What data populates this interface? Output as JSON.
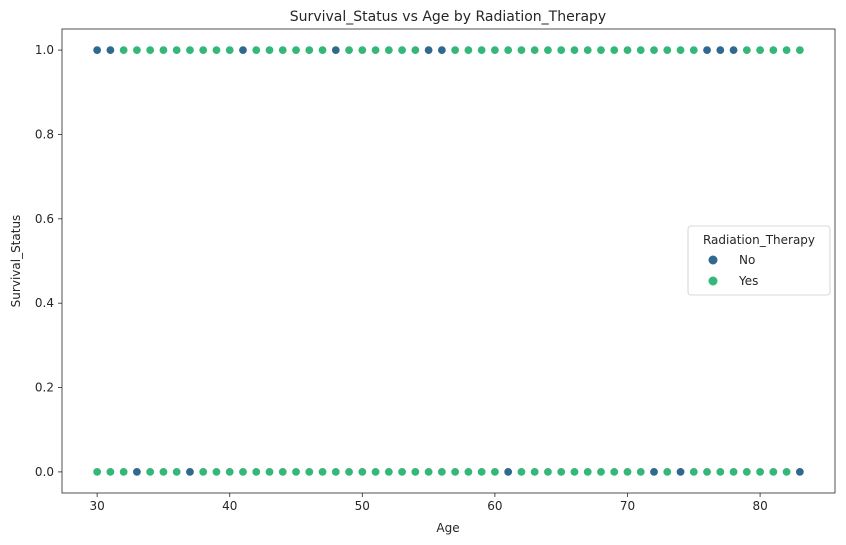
{
  "chart_data": {
    "type": "scatter",
    "title": "Survival_Status vs Age by Radiation_Therapy",
    "xlabel": "Age",
    "ylabel": "Survival_Status",
    "xlim": [
      27.35,
      85.65
    ],
    "ylim": [
      -0.05,
      1.05
    ],
    "xticks": [
      30,
      40,
      50,
      60,
      70,
      80
    ],
    "yticks": [
      0.0,
      0.2,
      0.4,
      0.6,
      0.8,
      1.0
    ],
    "xtick_labels": [
      "30",
      "40",
      "50",
      "60",
      "70",
      "80"
    ],
    "ytick_labels": [
      "0.0",
      "0.2",
      "0.4",
      "0.6",
      "0.8",
      "1.0"
    ],
    "grid": false,
    "legend": {
      "title": "Radiation_Therapy",
      "placement": "center-right"
    },
    "series": [
      {
        "name": "No",
        "color": "#31688e",
        "points": [
          [
            30,
            1
          ],
          [
            31,
            1
          ],
          [
            41,
            1
          ],
          [
            48,
            1
          ],
          [
            55,
            1
          ],
          [
            56,
            1
          ],
          [
            76,
            1
          ],
          [
            77,
            1
          ],
          [
            78,
            1
          ],
          [
            33,
            0
          ],
          [
            37,
            0
          ],
          [
            61,
            0
          ],
          [
            72,
            0
          ],
          [
            74,
            0
          ],
          [
            83,
            0
          ]
        ]
      },
      {
        "name": "Yes",
        "color": "#35b779",
        "points": [
          [
            32,
            1
          ],
          [
            33,
            1
          ],
          [
            34,
            1
          ],
          [
            35,
            1
          ],
          [
            36,
            1
          ],
          [
            37,
            1
          ],
          [
            38,
            1
          ],
          [
            39,
            1
          ],
          [
            40,
            1
          ],
          [
            42,
            1
          ],
          [
            43,
            1
          ],
          [
            44,
            1
          ],
          [
            45,
            1
          ],
          [
            46,
            1
          ],
          [
            47,
            1
          ],
          [
            49,
            1
          ],
          [
            50,
            1
          ],
          [
            51,
            1
          ],
          [
            52,
            1
          ],
          [
            53,
            1
          ],
          [
            54,
            1
          ],
          [
            57,
            1
          ],
          [
            58,
            1
          ],
          [
            59,
            1
          ],
          [
            60,
            1
          ],
          [
            61,
            1
          ],
          [
            62,
            1
          ],
          [
            63,
            1
          ],
          [
            64,
            1
          ],
          [
            65,
            1
          ],
          [
            66,
            1
          ],
          [
            67,
            1
          ],
          [
            68,
            1
          ],
          [
            69,
            1
          ],
          [
            70,
            1
          ],
          [
            71,
            1
          ],
          [
            72,
            1
          ],
          [
            73,
            1
          ],
          [
            74,
            1
          ],
          [
            75,
            1
          ],
          [
            79,
            1
          ],
          [
            80,
            1
          ],
          [
            81,
            1
          ],
          [
            82,
            1
          ],
          [
            83,
            1
          ],
          [
            30,
            0
          ],
          [
            31,
            0
          ],
          [
            32,
            0
          ],
          [
            34,
            0
          ],
          [
            35,
            0
          ],
          [
            36,
            0
          ],
          [
            38,
            0
          ],
          [
            39,
            0
          ],
          [
            40,
            0
          ],
          [
            41,
            0
          ],
          [
            42,
            0
          ],
          [
            43,
            0
          ],
          [
            44,
            0
          ],
          [
            45,
            0
          ],
          [
            46,
            0
          ],
          [
            47,
            0
          ],
          [
            48,
            0
          ],
          [
            49,
            0
          ],
          [
            50,
            0
          ],
          [
            51,
            0
          ],
          [
            52,
            0
          ],
          [
            53,
            0
          ],
          [
            54,
            0
          ],
          [
            55,
            0
          ],
          [
            56,
            0
          ],
          [
            57,
            0
          ],
          [
            58,
            0
          ],
          [
            59,
            0
          ],
          [
            60,
            0
          ],
          [
            62,
            0
          ],
          [
            63,
            0
          ],
          [
            64,
            0
          ],
          [
            65,
            0
          ],
          [
            66,
            0
          ],
          [
            67,
            0
          ],
          [
            68,
            0
          ],
          [
            69,
            0
          ],
          [
            70,
            0
          ],
          [
            71,
            0
          ],
          [
            73,
            0
          ],
          [
            75,
            0
          ],
          [
            76,
            0
          ],
          [
            77,
            0
          ],
          [
            78,
            0
          ],
          [
            79,
            0
          ],
          [
            80,
            0
          ],
          [
            81,
            0
          ],
          [
            82,
            0
          ]
        ]
      }
    ]
  }
}
